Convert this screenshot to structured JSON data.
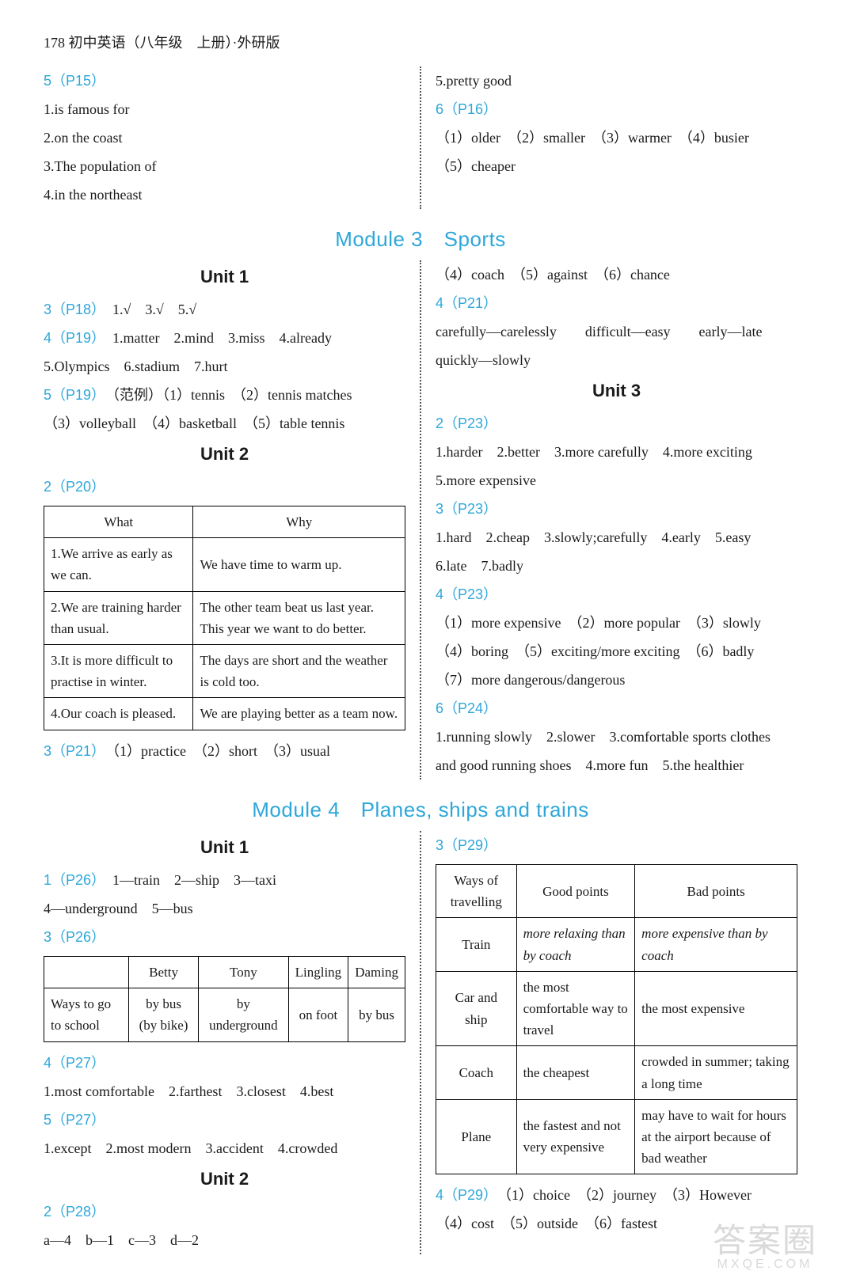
{
  "header": "178 初中英语（八年级　上册）·外研版",
  "top": {
    "left": {
      "ref": "5（P15）",
      "lines": [
        "1.is famous for",
        "2.on the coast",
        "3.The population of",
        "4.in the northeast"
      ]
    },
    "right": {
      "line1": "5.pretty good",
      "ref": "6（P16）",
      "line2": "（1）older　（2）smaller　（3）warmer　（4）busier",
      "line3": "（5）cheaper"
    }
  },
  "module3": {
    "title": "Module 3　Sports",
    "left": {
      "unit1": {
        "title": "Unit 1",
        "ref_a": "3（P18）",
        "ref_a_ans": "1.√　3.√　5.√",
        "ref_b": "4（P19）",
        "ref_b_ans1": "1.matter　2.mind　3.miss　4.already",
        "ref_b_ans2": "5.Olympics　6.stadium　7.hurt",
        "ref_c": "5（P19）",
        "ref_c_ans1": "（范例）（1）tennis　（2）tennis matches",
        "ref_c_ans2": "（3）volleyball　（4）basketball　（5）table tennis"
      },
      "unit2": {
        "title": "Unit 2",
        "ref_a": "2（P20）",
        "table_headers": [
          "What",
          "Why"
        ],
        "table_rows": [
          [
            "1.We arrive as early as we can.",
            "We have time to warm up."
          ],
          [
            "2.We are training harder than usual.",
            "The other team beat us last year. This year we want to do better."
          ],
          [
            "3.It is more difficult to practise in winter.",
            "The days are short and the weather is cold too."
          ],
          [
            "4.Our coach is pleased.",
            "We are playing better as a team now."
          ]
        ],
        "ref_b": "3（P21）",
        "ref_b_ans": "（1）practice　（2）short　（3）usual"
      }
    },
    "right": {
      "pre_unit3_line1": "（4）coach　（5）against　（6）chance",
      "ref_a": "4（P21）",
      "ref_a_ans1": "carefully—carelessly　　difficult—easy　　early—late",
      "ref_a_ans2": "quickly—slowly",
      "unit3": {
        "title": "Unit 3",
        "ref_b": "2（P23）",
        "ref_b_ans1": "1.harder　2.better　3.more carefully　4.more exciting",
        "ref_b_ans2": "5.more expensive",
        "ref_c": "3（P23）",
        "ref_c_ans1": "1.hard　2.cheap　3.slowly;carefully　4.early　5.easy",
        "ref_c_ans2": "6.late　7.badly",
        "ref_d": "4（P23）",
        "ref_d_ans1": "（1）more expensive　（2）more popular　（3）slowly",
        "ref_d_ans2": "（4）boring　（5）exciting/more exciting　（6）badly",
        "ref_d_ans3": "（7）more dangerous/dangerous",
        "ref_e": "6（P24）",
        "ref_e_ans1": "1.running slowly　2.slower　3.comfortable sports clothes",
        "ref_e_ans2": "and good running shoes　4.more fun　5.the healthier"
      }
    }
  },
  "module4": {
    "title": "Module 4　Planes, ships and trains",
    "left": {
      "unit1": {
        "title": "Unit 1",
        "ref_a": "1（P26）",
        "ref_a_ans1": "1—train　2—ship　3—taxi",
        "ref_a_ans2": "4—underground　5—bus",
        "ref_b": "3（P26）",
        "table_headers": [
          "",
          "Betty",
          "Tony",
          "Lingling",
          "Daming"
        ],
        "table_rows": [
          [
            "Ways to go to school",
            "by bus (by bike)",
            "by underground",
            "on foot",
            "by bus"
          ]
        ],
        "ref_c": "4（P27）",
        "ref_c_ans": "1.most comfortable　2.farthest　3.closest　4.best",
        "ref_d": "5（P27）",
        "ref_d_ans": "1.except　2.most modern　3.accident　4.crowded"
      },
      "unit2": {
        "title": "Unit 2",
        "ref_a": "2（P28）",
        "ref_a_ans": "a—4　b—1　c—3　d—2"
      }
    },
    "right": {
      "ref_a": "3（P29）",
      "table_headers": [
        "Ways of travelling",
        "Good points",
        "Bad points"
      ],
      "table_rows": [
        [
          "Train",
          "more relaxing than by coach",
          "more expensive than by coach"
        ],
        [
          "Car and ship",
          "the most comfortable way to travel",
          "the most expensive"
        ],
        [
          "Coach",
          "the cheapest",
          "crowded in summer; taking a long time"
        ],
        [
          "Plane",
          "the fastest and not very expensive",
          "may have to wait for hours at the airport because of bad weather"
        ]
      ],
      "ref_b": "4（P29）",
      "ref_b_ans1": "（1）choice　（2）journey　（3）However",
      "ref_b_ans2": "（4）cost　（5）outside　（6）fastest"
    }
  },
  "watermark": {
    "main": "答案圈",
    "sub": "MXQE.COM"
  }
}
